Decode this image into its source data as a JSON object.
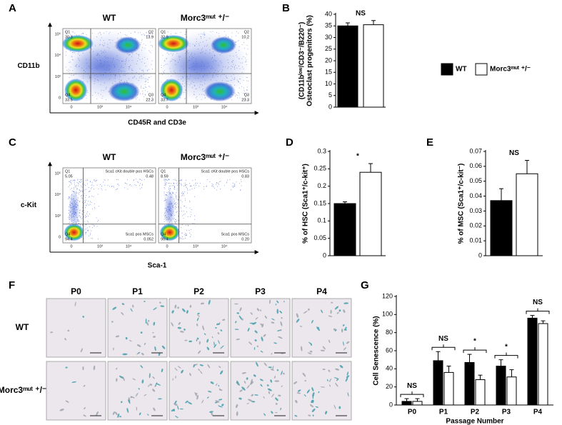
{
  "flow_panels": [
    {
      "panel": "A",
      "ylabel": "CD11b",
      "xlabel": "CD45R and CD3e",
      "yticks": [
        "10⁵",
        "10⁴",
        "10³",
        "0"
      ],
      "xticks": [
        "0",
        "10³",
        "10⁴"
      ],
      "plots": [
        {
          "title": "WT",
          "quadrants": [
            {
              "name": "Q1",
              "value": "30.3"
            },
            {
              "name": "Q2",
              "value": "13.9"
            },
            {
              "name": "Q4",
              "value": "33.5"
            },
            {
              "name": "Q3",
              "value": "22.3"
            }
          ]
        },
        {
          "title": "Morc3ᵐᵘᵗ ⁺/⁻",
          "quadrants": [
            {
              "name": "Q1",
              "value": "32.9"
            },
            {
              "name": "Q2",
              "value": "10.2"
            },
            {
              "name": "Q4",
              "value": "33.7"
            },
            {
              "name": "Q3",
              "value": "23.3"
            }
          ]
        }
      ]
    },
    {
      "panel": "C",
      "ylabel": "c-Kit",
      "xlabel": "Sca-1",
      "yticks": [
        "10⁵",
        "10⁴",
        "10³",
        "0"
      ],
      "xticks": [
        "0",
        "10³",
        "10⁴"
      ],
      "plots": [
        {
          "title": "WT",
          "quadrants": [
            {
              "name": "Q1",
              "value": "5.05"
            },
            {
              "name": "Sca1 cKit double pos HSCs",
              "value": "0.48"
            },
            {
              "name": "Q4",
              "value": "94.4"
            },
            {
              "name": "Sca1 pos MSCs",
              "value": "0.052"
            }
          ]
        },
        {
          "title": "Morc3ᵐᵘᵗ ⁺/⁻",
          "quadrants": [
            {
              "name": "Q1",
              "value": "8.59"
            },
            {
              "name": "Sca1 cKit double pos HSCs",
              "value": "0.83"
            },
            {
              "name": "Q4",
              "value": "90.4"
            },
            {
              "name": "Sca1 pos MSCs",
              "value": "0.20"
            }
          ]
        }
      ]
    }
  ],
  "micrographs": {
    "panel": "F",
    "columns": [
      "P0",
      "P1",
      "P2",
      "P3",
      "P4"
    ],
    "rows": [
      "WT",
      "Morc3ᵐᵘᵗ ⁺/⁻"
    ]
  },
  "chart_data": [
    {
      "type": "bar",
      "panel": "B",
      "ylabel": [
        "Osteoclast progenitors (%)",
        "(CD11bˡᵒʷ/CD3⁻/B220⁻)"
      ],
      "categories": [
        null
      ],
      "series": [
        {
          "name": "WT",
          "color": "#000000",
          "values": [
            35
          ],
          "errors": [
            1.3
          ]
        },
        {
          "name": "Morc3ᵐᵘᵗ ⁺/⁻",
          "color": "#ffffff",
          "values": [
            35.5
          ],
          "errors": [
            1.8
          ]
        }
      ],
      "annotations": [
        "NS"
      ],
      "ylim": [
        0,
        40
      ],
      "yticks": [
        0,
        5,
        10,
        15,
        20,
        25,
        30,
        35,
        40
      ],
      "legend": "right"
    },
    {
      "type": "bar",
      "panel": "D",
      "ylabel": "% of HSC (Sca1⁺/c-kit⁺)",
      "categories": [
        null
      ],
      "series": [
        {
          "color": "#000000",
          "values": [
            0.15
          ],
          "errors": [
            0.005
          ]
        },
        {
          "color": "#ffffff",
          "values": [
            0.24
          ],
          "errors": [
            0.025
          ]
        }
      ],
      "annotations": [
        "*"
      ],
      "ylim": [
        0,
        0.3
      ],
      "yticks": [
        0,
        0.05,
        0.1,
        0.15,
        0.2,
        0.25,
        0.3
      ]
    },
    {
      "type": "bar",
      "panel": "E",
      "ylabel": "% of MSC (Sca1⁺/c-kit⁻)",
      "categories": [
        null
      ],
      "series": [
        {
          "color": "#000000",
          "values": [
            0.037
          ],
          "errors": [
            0.008
          ]
        },
        {
          "color": "#ffffff",
          "values": [
            0.055
          ],
          "errors": [
            0.009
          ]
        }
      ],
      "annotations": [
        "NS"
      ],
      "ylim": [
        0,
        0.07
      ],
      "yticks": [
        0,
        0.01,
        0.02,
        0.03,
        0.04,
        0.05,
        0.06,
        0.07
      ]
    },
    {
      "type": "bar",
      "panel": "G",
      "ylabel": "Cell Senescence (%)",
      "xlabel": "Passage Number",
      "categories": [
        "P0",
        "P1",
        "P2",
        "P3",
        "P4"
      ],
      "series": [
        {
          "color": "#000000",
          "values": [
            4,
            49,
            47,
            43,
            96
          ],
          "errors": [
            3,
            10,
            9,
            7,
            3
          ]
        },
        {
          "color": "#ffffff",
          "values": [
            4,
            36,
            28,
            31,
            90
          ],
          "errors": [
            3,
            7,
            5,
            8,
            3
          ]
        }
      ],
      "annotations": [
        "NS",
        "NS",
        "*",
        "*",
        "NS"
      ],
      "brackets": true,
      "ylim": [
        0,
        120
      ],
      "yticks": [
        0,
        20,
        40,
        60,
        80,
        100,
        120
      ]
    }
  ]
}
